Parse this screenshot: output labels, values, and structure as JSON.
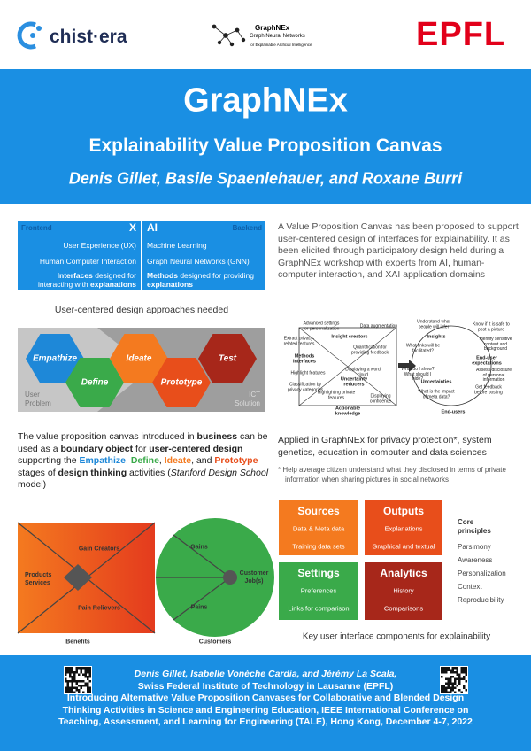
{
  "header": {
    "logo_left": "chist·era",
    "logo_center": {
      "name": "GraphNEx",
      "line1": "Graph Neural Networks",
      "line2": "for Explainable Artificial Intelligence"
    },
    "logo_right": "EPFL"
  },
  "banner": {
    "title": "GraphNEx",
    "subtitle": "Explainability Value Proposition Canvas",
    "authors": "Denis Gillet, Basile Spaenlehauer, and Roxane Burri"
  },
  "table": {
    "left": {
      "tag": "Frontend",
      "head": "X",
      "rows": [
        "User Experience (UX)",
        "Human Computer Interaction"
      ],
      "last": [
        "Interfaces",
        " designed for interacting with ",
        "explanations"
      ]
    },
    "right": {
      "tag": "Backend",
      "head": "AI",
      "rows": [
        "Machine Learning",
        "Graph Neural Networks (GNN)"
      ],
      "last": [
        "Methods",
        " designed for providing ",
        "explanations"
      ]
    }
  },
  "design_caption": "User-centered design approaches needed",
  "design_thinking": {
    "stages": [
      "Empathize",
      "Define",
      "Ideate",
      "Prototype",
      "Test"
    ],
    "left_label": "User Problem",
    "right_label": "ICT Solution"
  },
  "paragraph": [
    "The value proposition canvas introduced in ",
    "business",
    " can be used as a ",
    "boundary object",
    " for ",
    "user-centered design",
    " supporting the ",
    "Empathize",
    ", ",
    "Define",
    ", ",
    "Ideate",
    ", and ",
    "Prototype",
    " stages of ",
    "design thinking",
    " activities (",
    "Stanford Design School",
    " model)"
  ],
  "canvas": {
    "square": [
      "Gain Creators",
      "Products Services",
      "Pain Relievers"
    ],
    "circle": [
      "Gains",
      "Customer Job(s)",
      "Pains"
    ],
    "labels": [
      "Benefits",
      "Customers"
    ]
  },
  "intro": "A Value Proposition Canvas has been proposed to support user-centered design of interfaces for explainability. It as been elicited through participatory design held during a GraphNEx workshop with experts from AI, human-computer interaction, and XAI application domains",
  "vpc": {
    "square": [
      "Advanced settings for personalization",
      "Data augmentation",
      "Extract privacy-related features",
      "Insight creators",
      "Methods Interfaces",
      "Quantification for providing feedback",
      "Highlight features",
      "Displaying a word cloud",
      "Classification by privacy categories",
      "Uncertainty reducers",
      "Highlighting private features",
      "Displaying confidence",
      "Actionable knowledge"
    ],
    "circle": [
      "Understand what people will infer",
      "Know if it is safe to post a picture",
      "Insights",
      "Identify sensitive content and background",
      "What links will be facilitated?",
      "End-user expectations",
      "Assess disclosure of personal information",
      "What do I show? What should I hide?",
      "Uncertainties",
      "Get feedback before posting",
      "What is the impact of meta data?",
      "End-users"
    ]
  },
  "applied": "Applied in GraphNEx for privacy protection*, system genetics, education in computer and data sciences",
  "footnote": {
    "mark": "*",
    "text": "Help average citizen understand what they disclosed in terms of private information when sharing pictures in social networks"
  },
  "components": [
    {
      "title": "Sources",
      "items": [
        "Data & Meta data",
        "Training data sets"
      ]
    },
    {
      "title": "Outputs",
      "items": [
        "Explanations",
        "Graphical and textual"
      ]
    },
    {
      "title": "Settings",
      "items": [
        "Preferences",
        "Links for comparison"
      ]
    },
    {
      "title": "Analytics",
      "items": [
        "History",
        "Comparisons"
      ]
    }
  ],
  "core": {
    "title": "Core principles",
    "items": [
      "Parsimony",
      "Awareness",
      "Personalization",
      "Context",
      "Reproducibility"
    ]
  },
  "components_caption": "Key user interface components for explainability",
  "footer": {
    "line1": "Denis Gillet, Isabelle Vonèche Cardia, and Jérémy La Scala,",
    "line2": "Swiss Federal Institute of Technology in Lausanne (EPFL)",
    "citation": "Introducing Alternative Value Proposition Canvases for Collaborative and Blended Design Thinking Activities in Science and Engineering Education, IEEE International Conference on Teaching, Assessment, and Learning for Engineering (TALE), Hong Kong, December 4-7, 2022"
  }
}
